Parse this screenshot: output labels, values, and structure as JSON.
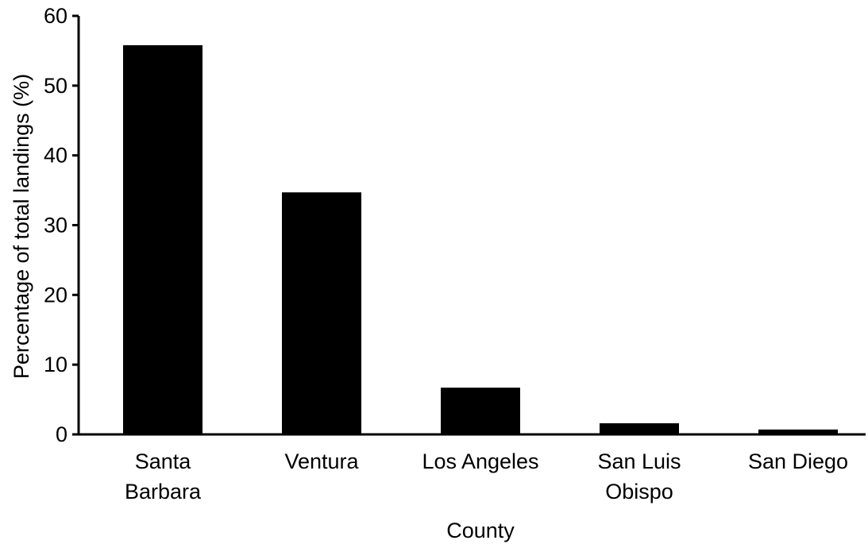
{
  "chart_data": {
    "type": "bar",
    "title": "",
    "xlabel": "County",
    "ylabel": "Percentage of total landings (%)",
    "ylim": [
      0,
      60
    ],
    "yticks": [
      0,
      10,
      20,
      30,
      40,
      50,
      60
    ],
    "categories": [
      [
        "Santa",
        "Barbara"
      ],
      [
        "Ventura"
      ],
      [
        "Los Angeles"
      ],
      [
        "San Luis",
        "Obispo"
      ],
      [
        "San Diego"
      ]
    ],
    "values": [
      55.8,
      34.7,
      6.7,
      1.6,
      0.7
    ],
    "grid": false,
    "legend": "none",
    "bar_color": "#000000"
  }
}
